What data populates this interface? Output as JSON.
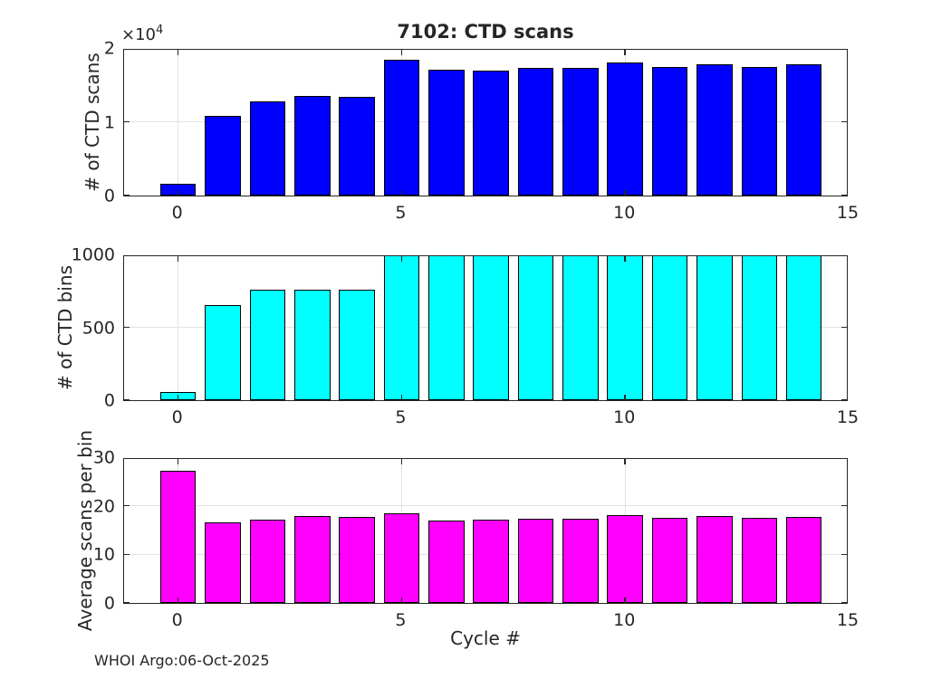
{
  "figure": {
    "title": "7102: CTD scans",
    "xlabel": "Cycle #",
    "footer": "WHOI Argo:06-Oct-2025",
    "exponent_base": "×10",
    "exponent_power": "4"
  },
  "colors": {
    "scans_bar": "#0000FF",
    "bins_bar": "#00FFFF",
    "avg_bar": "#FF00FF",
    "bar_edge": "#000000",
    "axis": "#262626",
    "grid": "#e2e2e2",
    "background": "#ffffff"
  },
  "chart_data": [
    {
      "type": "bar",
      "title": "7102: CTD scans",
      "ylabel": "# of CTD scans",
      "bar_color": "#0000FF",
      "x": [
        0,
        1,
        2,
        3,
        4,
        5,
        6,
        7,
        8,
        9,
        10,
        11,
        12,
        13,
        14
      ],
      "values": [
        1550,
        10750,
        12800,
        13450,
        13350,
        18400,
        17050,
        16950,
        17250,
        17350,
        18050,
        17450,
        17800,
        17450,
        17800
      ],
      "xlim": [
        -1.21,
        15.0
      ],
      "ylim": [
        0,
        20000
      ],
      "xticks": [
        0,
        5,
        10,
        15
      ],
      "xtick_labels": [
        "0",
        "5",
        "10",
        "15"
      ],
      "yticks": [
        0,
        10000,
        20000
      ],
      "ytick_labels": [
        "0",
        "1",
        "2"
      ],
      "y_exponent": "×10^4",
      "bar_width": 0.8,
      "grid": true,
      "legend": "none"
    },
    {
      "type": "bar",
      "ylabel": "# of CTD bins",
      "bar_color": "#00FFFF",
      "x": [
        0,
        1,
        2,
        3,
        4,
        5,
        6,
        7,
        8,
        9,
        10,
        11,
        12,
        13,
        14
      ],
      "values": [
        57,
        650,
        755,
        755,
        755,
        1000,
        1000,
        1000,
        1000,
        1000,
        1000,
        1000,
        1000,
        1000,
        1000
      ],
      "xlim": [
        -1.21,
        15.0
      ],
      "ylim": [
        0,
        1000
      ],
      "xticks": [
        0,
        5,
        10,
        15
      ],
      "xtick_labels": [
        "0",
        "5",
        "10",
        "15"
      ],
      "yticks": [
        0,
        500,
        1000
      ],
      "ytick_labels": [
        "0",
        "500",
        "1000"
      ],
      "bar_width": 0.8,
      "grid": true,
      "legend": "none"
    },
    {
      "type": "bar",
      "ylabel": "Average scans per bin",
      "bar_color": "#FF00FF",
      "x": [
        0,
        1,
        2,
        3,
        4,
        5,
        6,
        7,
        8,
        9,
        10,
        11,
        12,
        13,
        14
      ],
      "values": [
        27.3,
        16.6,
        17.1,
        17.9,
        17.7,
        18.4,
        17.0,
        17.1,
        17.25,
        17.35,
        18.05,
        17.45,
        17.8,
        17.45,
        17.75
      ],
      "xlim": [
        -1.21,
        15.0
      ],
      "ylim": [
        0,
        30
      ],
      "xticks": [
        0,
        5,
        10,
        15
      ],
      "xtick_labels": [
        "0",
        "5",
        "10",
        "15"
      ],
      "yticks": [
        0,
        10,
        20,
        30
      ],
      "ytick_labels": [
        "0",
        "10",
        "20",
        "30"
      ],
      "bar_width": 0.8,
      "grid": true,
      "legend": "none"
    }
  ]
}
